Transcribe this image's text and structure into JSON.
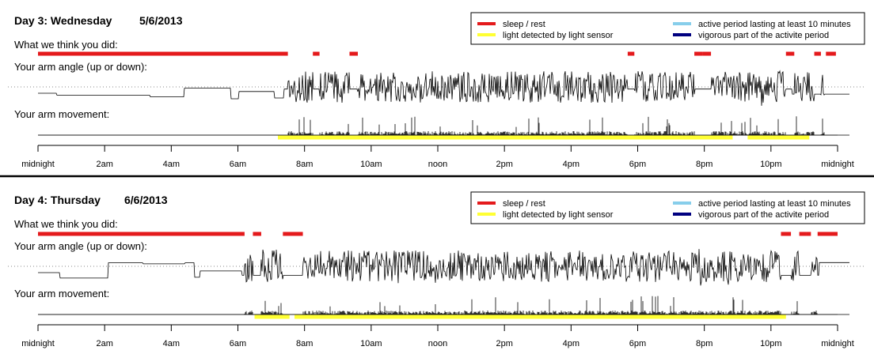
{
  "colors": {
    "sleep": "#e41a1c",
    "light": "#ffff33",
    "active": "#87ceeb",
    "vigorous": "#000080",
    "signal": "#000000",
    "dotted": "#888888",
    "axis": "#000000"
  },
  "legend": {
    "sleep": "sleep / rest",
    "light": "light detected by light sensor",
    "active": "active period lasting at least 10 minutes",
    "vigorous": "vigorous part of the activite period"
  },
  "row_labels": {
    "activity": "What we think you did:",
    "angle": "Your arm angle (up or down):",
    "movement": "Your arm movement:"
  },
  "time_ticks": [
    "midnight",
    "2am",
    "4am",
    "6am",
    "8am",
    "10am",
    "noon",
    "2pm",
    "4pm",
    "6pm",
    "8pm",
    "10pm",
    "midnight"
  ],
  "chart_data": [
    {
      "type": "line",
      "title": "Day 3: Wednesday",
      "date": "5/6/2013",
      "x_unit": "hour of day",
      "xlim": [
        0,
        24
      ],
      "sleep_periods": [
        [
          0.0,
          7.5
        ],
        [
          8.25,
          8.45
        ],
        [
          9.35,
          9.6
        ],
        [
          17.7,
          17.9
        ],
        [
          19.7,
          19.95
        ],
        [
          19.95,
          20.2
        ],
        [
          23.3,
          23.5
        ],
        [
          23.65,
          23.95
        ],
        [
          24.0,
          24.0
        ],
        [
          22.5,
          22.7
        ],
        [
          22.45,
          22.55
        ],
        [
          24.0,
          24.0
        ]
      ],
      "sleep_periods_note": "",
      "light_periods": [
        [
          7.2,
          20.85
        ],
        [
          21.3,
          23.15
        ]
      ],
      "active_periods": [],
      "vigorous_periods": []
    },
    {
      "type": "line",
      "title": "Day 4: Thursday",
      "date": "6/6/2013",
      "x_unit": "hour of day",
      "xlim": [
        0,
        24
      ],
      "sleep_periods": [
        [
          0.0,
          6.2
        ],
        [
          6.45,
          6.7
        ],
        [
          7.35,
          7.95
        ],
        [
          22.3,
          22.6
        ],
        [
          22.85,
          23.05
        ],
        [
          23.05,
          23.2
        ],
        [
          23.4,
          24.0
        ]
      ],
      "light_periods": [
        [
          6.5,
          7.55
        ],
        [
          7.7,
          22.45
        ]
      ],
      "active_periods": [],
      "vigorous_periods": []
    }
  ]
}
